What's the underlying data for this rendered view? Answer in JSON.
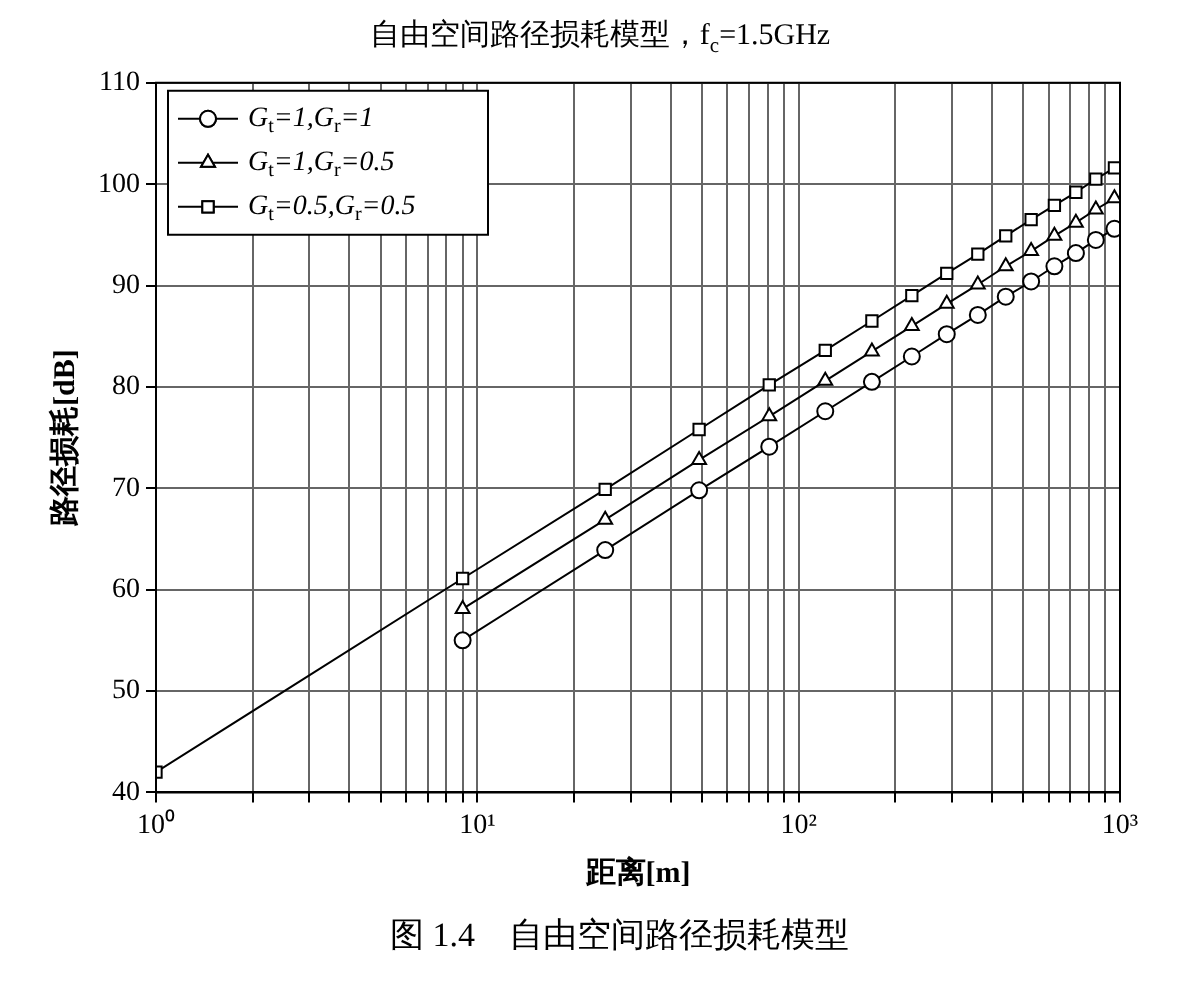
{
  "chart_data": {
    "type": "line",
    "title": "自由空间路径损耗模型，f$_{c}$=1.5GHz",
    "xlabel": "距离[m]",
    "ylabel": "路径损耗[dB]",
    "annotations": [
      "图 1.4　自由空间路径损耗模型"
    ],
    "x": [
      1,
      9,
      25,
      49,
      81,
      121,
      169,
      225,
      289,
      361,
      441,
      529,
      625,
      729,
      841,
      961
    ],
    "series": [
      {
        "name": "G$_{t}$=1,G$_{r}$=1",
        "color": "#000000",
        "marker": "circle",
        "values": [
          null,
          55.0,
          63.9,
          69.8,
          74.1,
          77.6,
          80.5,
          83.0,
          85.2,
          87.1,
          88.9,
          90.4,
          91.9,
          93.2,
          94.5,
          95.6
        ]
      },
      {
        "name": "G$_{t}$=1,G$_{r}$=0.5",
        "color": "#000000",
        "marker": "triangle",
        "values": [
          null,
          58.1,
          66.9,
          72.8,
          77.1,
          80.6,
          83.5,
          86.0,
          88.2,
          90.1,
          91.9,
          93.4,
          94.9,
          96.2,
          97.5,
          98.6
        ]
      },
      {
        "name": "G$_{t}$=0.5,G$_{r}$=0.5",
        "color": "#000000",
        "marker": "square",
        "values": [
          42.0,
          61.1,
          69.9,
          75.8,
          80.2,
          83.6,
          86.5,
          89.0,
          91.2,
          93.1,
          94.9,
          96.5,
          97.9,
          99.2,
          100.5,
          101.6
        ]
      }
    ],
    "log": "x",
    "xlim": [
      1,
      1000
    ],
    "xticks": [
      {
        "value": 1,
        "label": "10⁰"
      },
      {
        "value": 2,
        "label": null
      },
      {
        "value": 3,
        "label": null
      },
      {
        "value": 4,
        "label": null
      },
      {
        "value": 5,
        "label": null
      },
      {
        "value": 6,
        "label": null
      },
      {
        "value": 7,
        "label": null
      },
      {
        "value": 8,
        "label": null
      },
      {
        "value": 9,
        "label": null
      },
      {
        "value": 10,
        "label": "10¹"
      },
      {
        "value": 20,
        "label": null
      },
      {
        "value": 30,
        "label": null
      },
      {
        "value": 40,
        "label": null
      },
      {
        "value": 50,
        "label": null
      },
      {
        "value": 60,
        "label": null
      },
      {
        "value": 70,
        "label": null
      },
      {
        "value": 80,
        "label": null
      },
      {
        "value": 90,
        "label": null
      },
      {
        "value": 100,
        "label": "10²"
      },
      {
        "value": 200,
        "label": null
      },
      {
        "value": 300,
        "label": null
      },
      {
        "value": 400,
        "label": null
      },
      {
        "value": 500,
        "label": null
      },
      {
        "value": 600,
        "label": null
      },
      {
        "value": 700,
        "label": null
      },
      {
        "value": 800,
        "label": null
      },
      {
        "value": 900,
        "label": null
      },
      {
        "value": 1000,
        "label": "10³"
      }
    ],
    "ylim": [
      40,
      110
    ],
    "yticks": [
      40,
      50,
      60,
      70,
      80,
      90,
      100,
      110
    ],
    "grid": true,
    "legend": "top left",
    "line_style": "solid"
  }
}
